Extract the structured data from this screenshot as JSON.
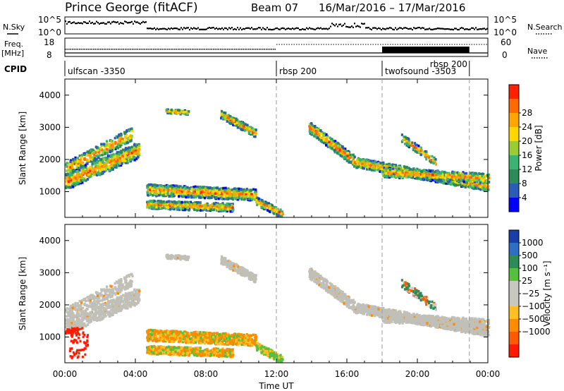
{
  "header": {
    "title": "Prince George (fitACF)",
    "beam": "Beam 07",
    "date_range": "16/Mar/2016 – 17/Mar/2016"
  },
  "strip": {
    "nsky_label": "N.Sky",
    "nsky_top": "10^5",
    "nsky_bottom": "10^0",
    "nsearch_top": "10^5",
    "nsearch_bottom": "10^0",
    "nsearch_label": "N.Search",
    "freq_label": "Freq.",
    "freq_unit": "[MHz]",
    "freq_top": "18",
    "freq_bottom": "8",
    "nave_top": "60",
    "nave_bottom": "0",
    "nave_label": "Nave",
    "cpid_label": "CPID"
  },
  "cpid_segments": [
    {
      "label": "ulfscan -3350",
      "start_hour": 0
    },
    {
      "label": "rbsp 200",
      "start_hour": 12
    },
    {
      "label": "twofsound -3503",
      "start_hour": 18
    },
    {
      "label": "rbsp 200",
      "start_hour": 22.95
    }
  ],
  "chart_data": [
    {
      "type": "heatmap",
      "name": "power",
      "xlabel": "",
      "ylabel": "Slant Range [km]",
      "x_range_hours": [
        0,
        24
      ],
      "ylim": [
        200,
        4500
      ],
      "yticks": [
        1000,
        2000,
        3000,
        4000
      ],
      "colorbar_label": "Power [dB]",
      "colorbar_ticks": [
        "4",
        "8",
        "12",
        "16",
        "20",
        "24",
        "28"
      ],
      "colorbar_colors": [
        "#0000ff",
        "#2a5cb8",
        "#2e8b57",
        "#3cb371",
        "#9acd32",
        "#ffd700",
        "#ffa500",
        "#ff6a00",
        "#ff2200"
      ]
    },
    {
      "type": "heatmap",
      "name": "velocity",
      "xlabel": "Time UT",
      "ylabel": "Slant Range [km]",
      "x_range_hours": [
        0,
        24
      ],
      "xticks": [
        "00:00",
        "04:00",
        "08:00",
        "12:00",
        "16:00",
        "20:00",
        "00:00"
      ],
      "ylim": [
        200,
        4500
      ],
      "yticks": [
        1000,
        2000,
        3000,
        4000
      ],
      "colorbar_label": "Velocity [m s⁻¹]",
      "colorbar_ticks": [
        "1000",
        "500",
        "100",
        "25",
        "−25",
        "−100",
        "−500",
        "−1000"
      ],
      "colorbar_colors": [
        "#1a3ea8",
        "#2e6fc4",
        "#2e8b57",
        "#55c040",
        "#c8c8c0",
        "#c8c8c0",
        "#ffc020",
        "#ff8c00",
        "#ff5a00",
        "#ff1a00"
      ]
    }
  ],
  "colors": {
    "ground_scatter": "#c0c0b8"
  }
}
